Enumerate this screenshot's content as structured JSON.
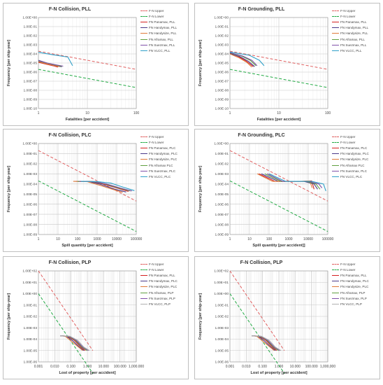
{
  "chart_data": [
    {
      "type": "line",
      "title": "F-N Collision, PLL",
      "xlabel": "Fatalities [per accident]",
      "ylabel": "Frequency [per ship-year]",
      "xscale": "log",
      "yscale": "log",
      "xlim": [
        1,
        100
      ],
      "ylim": [
        1e-10,
        1
      ],
      "xticks": [
        "1",
        "10",
        "100"
      ],
      "yticks": [
        "1.00E-10",
        "1.00E-09",
        "1.00E-08",
        "1.00E-07",
        "1.00E-06",
        "1.00E-05",
        "1.00E-04",
        "1.00E-03",
        "1.00E-02",
        "1.00E-01",
        "1.00E+00"
      ],
      "grid": true,
      "legend_position": "right",
      "series": [
        {
          "name": "F-N Upper",
          "style": "dashed",
          "color": "#e06060",
          "x": [
            1,
            100
          ],
          "y": [
            0.0002,
            2e-06
          ]
        },
        {
          "name": "F-N Lower",
          "style": "dashed",
          "color": "#22aa44",
          "x": [
            1,
            100
          ],
          "y": [
            2e-06,
            2e-08
          ]
        },
        {
          "name": "FN Panamax, PLL",
          "style": "solid",
          "color": "#d42020",
          "x": [
            1,
            1.5,
            2,
            2.5
          ],
          "y": [
            1.2e-05,
            7e-06,
            5e-06,
            3.5e-06
          ]
        },
        {
          "name": "FN Handymax, PLL",
          "style": "solid",
          "color": "#4a3a8a",
          "x": [
            1,
            1.5,
            2,
            3
          ],
          "y": [
            2e-05,
            1e-05,
            6e-06,
            3.8e-06
          ]
        },
        {
          "name": "FN Handysize, PLL",
          "style": "solid",
          "color": "#e07a3a",
          "x": [
            1,
            1.5,
            2,
            2.7
          ],
          "y": [
            1.4e-05,
            8e-06,
            5.5e-06,
            4e-06
          ]
        },
        {
          "name": "FN Aframax, PLL",
          "style": "solid",
          "color": "#60a040",
          "x": [
            1,
            1.6,
            2.2,
            3
          ],
          "y": [
            1.6e-05,
            9e-06,
            6e-06,
            4.2e-06
          ]
        },
        {
          "name": "FN Suezmax, PLL",
          "style": "solid",
          "color": "#8050a8",
          "x": [
            1,
            1.5,
            2.2,
            3.2
          ],
          "y": [
            1.8e-05,
            1e-05,
            6.5e-06,
            4.5e-06
          ]
        },
        {
          "name": "FN VLCC, PLL",
          "style": "solid",
          "color": "#30a0c8",
          "x": [
            1,
            2,
            4,
            5
          ],
          "y": [
            0.00015,
            8e-05,
            4.5e-05,
            5e-06
          ]
        }
      ]
    },
    {
      "type": "line",
      "title": "F-N Grounding, PLL",
      "xlabel": "Fatalities [per accident]",
      "ylabel": "Frequency [per ship-year]",
      "xscale": "log",
      "yscale": "log",
      "xlim": [
        1,
        100
      ],
      "ylim": [
        1e-10,
        1
      ],
      "xticks": [
        "1",
        "10",
        "100"
      ],
      "yticks": [
        "1.00E-10",
        "1.00E-09",
        "1.00E-08",
        "1.00E-07",
        "1.00E-06",
        "1.00E-05",
        "1.00E-04",
        "1.00E-03",
        "1.00E-02",
        "1.00E-01",
        "1.00E+00"
      ],
      "grid": true,
      "legend_position": "right",
      "series": [
        {
          "name": "F-N Upper",
          "style": "dashed",
          "color": "#e06060",
          "x": [
            1,
            100
          ],
          "y": [
            0.0002,
            2e-06
          ]
        },
        {
          "name": "F-N Lower",
          "style": "dashed",
          "color": "#22aa44",
          "x": [
            1,
            100
          ],
          "y": [
            2e-06,
            2e-08
          ]
        },
        {
          "name": "FN Panamax, PLL",
          "style": "solid",
          "color": "#d42020",
          "x": [
            1,
            1.5,
            2.2,
            3
          ],
          "y": [
            0.00012,
            5e-05,
            1.5e-05,
            4e-06
          ]
        },
        {
          "name": "FN Handymax, PLL",
          "style": "solid",
          "color": "#4a3a8a",
          "x": [
            1,
            1.6,
            2.4,
            3.2
          ],
          "y": [
            0.00011,
            5e-05,
            1.5e-05,
            4e-06
          ]
        },
        {
          "name": "FN Handysize, PLL",
          "style": "solid",
          "color": "#e07a3a",
          "x": [
            1,
            1.5,
            2.2,
            2.8
          ],
          "y": [
            0.0001,
            4e-05,
            1.2e-05,
            3.5e-06
          ]
        },
        {
          "name": "FN Aframax, PLL",
          "style": "solid",
          "color": "#60a040",
          "x": [
            1,
            1.7,
            2.6,
            3.4
          ],
          "y": [
            0.00013,
            6e-05,
            2e-05,
            5e-06
          ]
        },
        {
          "name": "FN Suezmax, PLL",
          "style": "solid",
          "color": "#8050a8",
          "x": [
            1,
            1.8,
            2.8,
            3.6
          ],
          "y": [
            0.00014,
            6e-05,
            2e-05,
            5e-06
          ]
        },
        {
          "name": "FN VLCC, PLL",
          "style": "solid",
          "color": "#30a0c8",
          "x": [
            1,
            2.5,
            4,
            5
          ],
          "y": [
            0.00016,
            7e-05,
            2e-05,
            5e-06
          ]
        }
      ]
    },
    {
      "type": "line",
      "title": "F-N Collision, PLC",
      "xlabel": "Spill quantity [per accident]",
      "ylabel": "Frequency [per ship-year]",
      "xscale": "log",
      "yscale": "log",
      "xlim": [
        1,
        100000
      ],
      "ylim": [
        1e-09,
        1
      ],
      "xticks": [
        "1",
        "10",
        "100",
        "1000",
        "10000",
        "100000"
      ],
      "yticks": [
        "1.00E-09",
        "1.00E-08",
        "1.00E-07",
        "1.00E-06",
        "1.00E-05",
        "1.00E-04",
        "1.00E-03",
        "1.00E-02",
        "1.00E-01",
        "1.00E+00"
      ],
      "grid": true,
      "legend_position": "right",
      "series": [
        {
          "name": "F-N Upper",
          "style": "dashed",
          "color": "#e06060",
          "x": [
            1,
            100000
          ],
          "y": [
            0.2,
            2e-06
          ]
        },
        {
          "name": "F-N Lower",
          "style": "dashed",
          "color": "#22aa44",
          "x": [
            1,
            100000
          ],
          "y": [
            0.0002,
            2e-09
          ]
        },
        {
          "name": "FN Panamax, PLC",
          "style": "solid",
          "color": "#d42020",
          "x": [
            100,
            500,
            2000,
            10000,
            40000
          ],
          "y": [
            0.00018,
            0.00017,
            0.0001,
            4e-05,
            1.8e-05
          ]
        },
        {
          "name": "FN Handymax, PLC",
          "style": "solid",
          "color": "#4a3a8a",
          "x": [
            80,
            400,
            1500,
            8000,
            30000
          ],
          "y": [
            0.00018,
            0.00017,
            9e-05,
            3e-05,
            1.6e-05
          ]
        },
        {
          "name": "FN Handysize, PLC",
          "style": "solid",
          "color": "#e07a3a",
          "x": [
            60,
            300,
            1200,
            6000,
            20000
          ],
          "y": [
            0.00018,
            0.00017,
            8e-05,
            3e-05,
            1.5e-05
          ]
        },
        {
          "name": "FN Aframax PLC",
          "style": "solid",
          "color": "#60a040",
          "x": [
            100,
            600,
            2500,
            12000,
            50000
          ],
          "y": [
            0.00018,
            0.00017,
            0.0001,
            4e-05,
            2e-05
          ]
        },
        {
          "name": "FN Suezmax, PLC",
          "style": "solid",
          "color": "#8050a8",
          "x": [
            120,
            700,
            3000,
            15000,
            60000
          ],
          "y": [
            0.00018,
            0.00017,
            0.0001,
            4e-05,
            2e-05
          ]
        },
        {
          "name": "FN VLCC, PLC",
          "style": "solid",
          "color": "#30a0c8",
          "x": [
            150,
            1000,
            5000,
            20000,
            80000
          ],
          "y": [
            0.00018,
            0.00017,
            0.00012,
            5e-05,
            2.2e-05
          ]
        }
      ]
    },
    {
      "type": "line",
      "title": "F-N Grounding, PLC",
      "xlabel": "Spill quantity [per accident]]",
      "ylabel": "Frequency [per ship-year]",
      "xscale": "log",
      "yscale": "log",
      "xlim": [
        1,
        100000
      ],
      "ylim": [
        1e-09,
        1
      ],
      "xticks": [
        "1",
        "10",
        "100",
        "1000",
        "10000",
        "100000"
      ],
      "yticks": [
        "1.00E-09",
        "1.00E-08",
        "1.00E-07",
        "1.00E-06",
        "1.00E-05",
        "1.00E-04",
        "1.00E-03",
        "1.00E-02",
        "1.00E-01",
        "1.00E+00"
      ],
      "grid": true,
      "legend_position": "right",
      "series": [
        {
          "name": "F-N Upper",
          "style": "dashed",
          "color": "#e06060",
          "x": [
            1,
            100000
          ],
          "y": [
            0.2,
            2e-06
          ]
        },
        {
          "name": "F-N Lower",
          "style": "dashed",
          "color": "#22aa44",
          "x": [
            1,
            100000
          ],
          "y": [
            0.0002,
            2e-09
          ]
        },
        {
          "name": "FN Panamax, PLC",
          "style": "solid",
          "color": "#d42020",
          "x": [
            30,
            200,
            1000,
            5000,
            15000,
            20000
          ],
          "y": [
            0.001,
            0.00018,
            0.00018,
            0.00018,
            0.0002,
            3e-05
          ]
        },
        {
          "name": "FN Handymax, PLC",
          "style": "solid",
          "color": "#4a3a8a",
          "x": [
            40,
            300,
            1500,
            6000,
            20000,
            30000
          ],
          "y": [
            0.001,
            0.00018,
            0.00018,
            0.00018,
            0.0001,
            3e-05
          ]
        },
        {
          "name": "FN Handysize, PLC",
          "style": "solid",
          "color": "#e07a3a",
          "x": [
            25,
            150,
            800,
            4000,
            12000,
            16000
          ],
          "y": [
            0.001,
            0.00018,
            0.00018,
            0.00018,
            0.0002,
            4e-05
          ]
        },
        {
          "name": "FN Aframax PLC",
          "style": "solid",
          "color": "#60a040",
          "x": [
            60,
            400,
            2000,
            8000,
            25000,
            40000
          ],
          "y": [
            0.001,
            0.00018,
            0.00018,
            0.00018,
            0.0001,
            3e-05
          ]
        },
        {
          "name": "FN Suezmax, PLC",
          "style": "solid",
          "color": "#8050a8",
          "x": [
            80,
            500,
            2500,
            10000,
            35000,
            50000
          ],
          "y": [
            0.001,
            0.00018,
            0.00018,
            0.00018,
            0.0001,
            4e-05
          ]
        },
        {
          "name": "FN VLCC, PLC",
          "style": "solid",
          "color": "#30a0c8",
          "x": [
            100,
            700,
            3500,
            15000,
            60000,
            80000
          ],
          "y": [
            0.001,
            0.00018,
            0.00018,
            0.00018,
            0.0001,
            2e-05
          ]
        }
      ]
    },
    {
      "type": "line",
      "title": "F-N Collision, PLP",
      "xlabel": "Lost of property [per accident]",
      "ylabel": "Frequency [per ship-year]",
      "xscale": "log",
      "yscale": "log",
      "xlim": [
        0.001,
        1000000
      ],
      "ylim": [
        1e-06,
        100
      ],
      "xticks": [
        "0.001",
        "0.010",
        "0.100",
        "1.000",
        "10.000",
        "100.000",
        "1,000.000"
      ],
      "yticks": [
        "1.00E-06",
        "1.00E-05",
        "1.00E-04",
        "1.00E-03",
        "1.00E-02",
        "1.00E-01",
        "1.00E+00",
        "1.00E+01",
        "1.00E+02"
      ],
      "grid": true,
      "legend_position": "right",
      "series": [
        {
          "name": "F-N Upper",
          "style": "dashed",
          "color": "#e06060",
          "x": [
            0.001,
            100
          ],
          "y": [
            100,
            1e-05
          ]
        },
        {
          "name": "F-N Lower",
          "style": "dashed",
          "color": "#22aa44",
          "x": [
            0.001,
            100
          ],
          "y": [
            1,
            1e-07
          ]
        },
        {
          "name": "FN Panamax, PLL",
          "style": "solid",
          "color": "#d42020",
          "x": [
            0.1,
            0.5,
            2,
            8,
            20
          ],
          "y": [
            0.0002,
            0.00018,
            8e-05,
            2e-05,
            1e-05
          ]
        },
        {
          "name": "FN Handymax, PLC",
          "style": "solid",
          "color": "#4a3a8a",
          "x": [
            0.1,
            0.4,
            1.5,
            6,
            15
          ],
          "y": [
            0.0002,
            0.00018,
            7e-05,
            2e-05,
            1e-05
          ]
        },
        {
          "name": "FN Handysize, PLC",
          "style": "solid",
          "color": "#e07a3a",
          "x": [
            0.1,
            0.3,
            1.2,
            5,
            12
          ],
          "y": [
            0.0002,
            0.00018,
            6e-05,
            2e-05,
            1e-05
          ]
        },
        {
          "name": "FN Aframax, PLP",
          "style": "solid",
          "color": "#60a040",
          "x": [
            0.1,
            0.6,
            2.5,
            10,
            30
          ],
          "y": [
            0.0002,
            0.00018,
            8e-05,
            2e-05,
            1e-05
          ]
        },
        {
          "name": "FN Suezmax, PLP",
          "style": "solid",
          "color": "#8050a8",
          "x": [
            0.1,
            0.7,
            3,
            12,
            40
          ],
          "y": [
            0.0002,
            0.00018,
            8e-05,
            2e-05,
            1e-05
          ]
        },
        {
          "name": "FN VLCC, PLP",
          "style": "solid",
          "color": "#b0b0b0",
          "x": [
            0.1,
            0.8,
            4,
            15,
            50
          ],
          "y": [
            0.0002,
            0.00018,
            8e-05,
            2e-05,
            1e-05
          ]
        }
      ]
    },
    {
      "type": "line",
      "title": "F-N Collision, PLP",
      "xlabel": "Lost of property [per accident]",
      "ylabel": "Frequency [per ship-year]",
      "xscale": "log",
      "yscale": "log",
      "xlim": [
        0.001,
        1000000
      ],
      "ylim": [
        1e-06,
        100
      ],
      "xticks": [
        "0.001",
        "0.010",
        "0.100",
        "1.000",
        "10.000",
        "100.000",
        "1,000,000"
      ],
      "yticks": [
        "1.00E-06",
        "1.00E-05",
        "1.00E-04",
        "1.00E-03",
        "1.00E-02",
        "1.00E-01",
        "1.00E+00",
        "1.00E+01",
        "1.00E+02"
      ],
      "grid": true,
      "legend_position": "right",
      "series": [
        {
          "name": "F-N Upper",
          "style": "dashed",
          "color": "#e06060",
          "x": [
            0.001,
            100
          ],
          "y": [
            100,
            1e-05
          ]
        },
        {
          "name": "F-N Lower",
          "style": "dashed",
          "color": "#22aa44",
          "x": [
            0.001,
            100
          ],
          "y": [
            1,
            1e-07
          ]
        },
        {
          "name": "FN Panamax, PLL",
          "style": "solid",
          "color": "#d42020",
          "x": [
            0.1,
            0.5,
            2,
            8,
            20
          ],
          "y": [
            0.0002,
            0.00018,
            8e-05,
            2e-05,
            1e-05
          ]
        },
        {
          "name": "FN Handymax, PLC",
          "style": "solid",
          "color": "#4a3a8a",
          "x": [
            0.1,
            0.4,
            1.5,
            6,
            15
          ],
          "y": [
            0.0002,
            0.00018,
            7e-05,
            2e-05,
            1e-05
          ]
        },
        {
          "name": "FN Handysize, PLC",
          "style": "solid",
          "color": "#e07a3a",
          "x": [
            0.1,
            0.3,
            1.2,
            5,
            12
          ],
          "y": [
            0.0002,
            0.00018,
            6e-05,
            2e-05,
            1e-05
          ]
        },
        {
          "name": "FN Aframax, PLP",
          "style": "solid",
          "color": "#60a040",
          "x": [
            0.1,
            0.6,
            2.5,
            10,
            30
          ],
          "y": [
            0.0002,
            0.00018,
            8e-05,
            2e-05,
            1e-05
          ]
        },
        {
          "name": "FN Suezmax, PLP",
          "style": "solid",
          "color": "#8050a8",
          "x": [
            0.1,
            0.7,
            3,
            12,
            40
          ],
          "y": [
            0.0002,
            0.00018,
            8e-05,
            2e-05,
            1e-05
          ]
        },
        {
          "name": "FN VLCC, PLP",
          "style": "solid",
          "color": "#b0b0b0",
          "x": [
            0.1,
            0.8,
            4,
            15,
            50
          ],
          "y": [
            0.0002,
            0.00018,
            8e-05,
            2e-05,
            1e-05
          ]
        }
      ]
    }
  ]
}
